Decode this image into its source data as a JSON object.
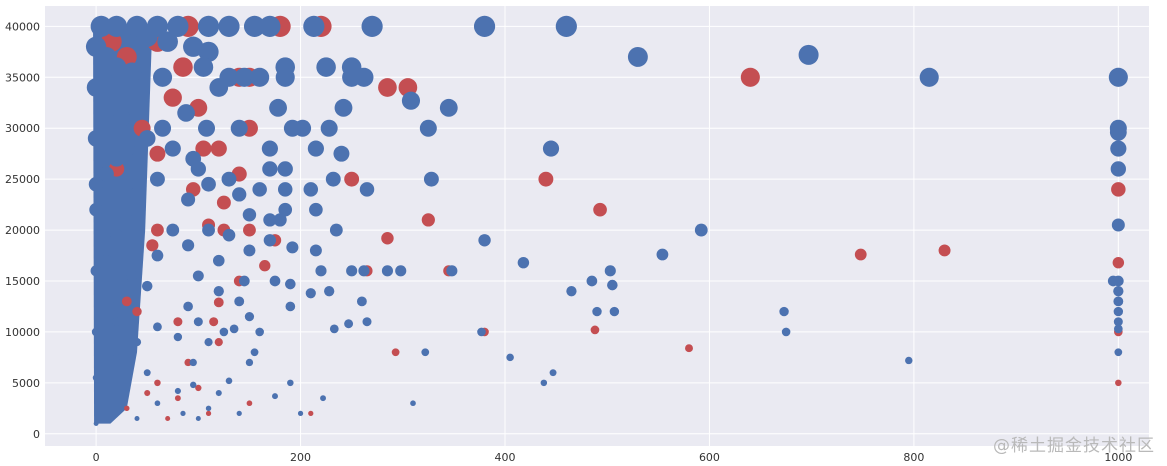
{
  "chart_data": {
    "type": "scatter",
    "title": "",
    "xlabel": "",
    "ylabel": "",
    "xlim": [
      -50,
      1030
    ],
    "ylim": [
      -1200,
      42000
    ],
    "xticks": [
      0,
      200,
      400,
      600,
      800,
      1000
    ],
    "yticks": [
      0,
      5000,
      10000,
      15000,
      20000,
      25000,
      30000,
      35000,
      40000
    ],
    "grid": true,
    "legend": "none",
    "colors": {
      "background": "#EAEAF2",
      "grid": "#FFFFFF",
      "blue": "#4C72B0",
      "red": "#C44E52"
    },
    "series": [
      {
        "color": "#C44E52",
        "points": [
          [
            180,
            40000
          ],
          [
            220,
            40000
          ],
          [
            90,
            40000
          ],
          [
            15,
            38500
          ],
          [
            60,
            38500
          ],
          [
            30,
            37000
          ],
          [
            85,
            36000
          ],
          [
            150,
            35000
          ],
          [
            140,
            35000
          ],
          [
            640,
            35000
          ],
          [
            285,
            34000
          ],
          [
            305,
            34000
          ],
          [
            75,
            33000
          ],
          [
            100,
            32000
          ],
          [
            150,
            30000
          ],
          [
            45,
            30000
          ],
          [
            105,
            28000
          ],
          [
            120,
            28000
          ],
          [
            60,
            27500
          ],
          [
            20,
            26000
          ],
          [
            140,
            25500
          ],
          [
            250,
            25000
          ],
          [
            440,
            25000
          ],
          [
            95,
            24000
          ],
          [
            125,
            22700
          ],
          [
            493,
            22000
          ],
          [
            325,
            21000
          ],
          [
            110,
            20500
          ],
          [
            150,
            20000
          ],
          [
            125,
            20000
          ],
          [
            60,
            20000
          ],
          [
            175,
            19000
          ],
          [
            285,
            19200
          ],
          [
            55,
            18500
          ],
          [
            830,
            18000
          ],
          [
            748,
            17600
          ],
          [
            1000,
            24000
          ],
          [
            1000,
            16800
          ],
          [
            165,
            16500
          ],
          [
            345,
            16000
          ],
          [
            265,
            16000
          ],
          [
            140,
            15000
          ],
          [
            120,
            12900
          ],
          [
            40,
            12000
          ],
          [
            30,
            13000
          ],
          [
            80,
            11000
          ],
          [
            115,
            11000
          ],
          [
            380,
            10000
          ],
          [
            488,
            10200
          ],
          [
            1000,
            10000
          ],
          [
            120,
            9000
          ],
          [
            580,
            8400
          ],
          [
            293,
            8000
          ],
          [
            90,
            7000
          ],
          [
            60,
            5000
          ],
          [
            1000,
            5000
          ],
          [
            100,
            4500
          ],
          [
            50,
            4000
          ],
          [
            150,
            3000
          ],
          [
            110,
            2000
          ],
          [
            210,
            2000
          ],
          [
            80,
            3500
          ],
          [
            30,
            2500
          ],
          [
            70,
            1500
          ]
        ]
      },
      {
        "color": "#4C72B0",
        "points": [
          [
            5,
            40000
          ],
          [
            20,
            40000
          ],
          [
            40,
            40000
          ],
          [
            60,
            40000
          ],
          [
            80,
            40000
          ],
          [
            110,
            40000
          ],
          [
            130,
            40000
          ],
          [
            155,
            40000
          ],
          [
            170,
            40000
          ],
          [
            213,
            40000
          ],
          [
            270,
            40000
          ],
          [
            380,
            40000
          ],
          [
            460,
            40000
          ],
          [
            0,
            38000
          ],
          [
            10,
            37000
          ],
          [
            50,
            39000
          ],
          [
            70,
            38500
          ],
          [
            95,
            38000
          ],
          [
            110,
            37500
          ],
          [
            530,
            37000
          ],
          [
            697,
            37200
          ],
          [
            20,
            36000
          ],
          [
            35,
            35500
          ],
          [
            105,
            36000
          ],
          [
            185,
            36000
          ],
          [
            225,
            36000
          ],
          [
            250,
            36000
          ],
          [
            815,
            35000
          ],
          [
            1000,
            35000
          ],
          [
            65,
            35000
          ],
          [
            130,
            35000
          ],
          [
            145,
            35000
          ],
          [
            160,
            35000
          ],
          [
            185,
            35000
          ],
          [
            250,
            35000
          ],
          [
            262,
            35000
          ],
          [
            120,
            34000
          ],
          [
            0,
            34000
          ],
          [
            40,
            33500
          ],
          [
            308,
            32700
          ],
          [
            178,
            32000
          ],
          [
            242,
            32000
          ],
          [
            345,
            32000
          ],
          [
            25,
            31000
          ],
          [
            88,
            31500
          ],
          [
            65,
            30000
          ],
          [
            108,
            30000
          ],
          [
            140,
            30000
          ],
          [
            192,
            30000
          ],
          [
            202,
            30000
          ],
          [
            228,
            30000
          ],
          [
            325,
            30000
          ],
          [
            1000,
            30000
          ],
          [
            1000,
            29600
          ],
          [
            0,
            29000
          ],
          [
            50,
            29000
          ],
          [
            30,
            28000
          ],
          [
            75,
            28000
          ],
          [
            170,
            28000
          ],
          [
            215,
            28000
          ],
          [
            445,
            28000
          ],
          [
            1000,
            28000
          ],
          [
            240,
            27500
          ],
          [
            20,
            27000
          ],
          [
            95,
            27000
          ],
          [
            100,
            26000
          ],
          [
            170,
            26000
          ],
          [
            185,
            26000
          ],
          [
            1000,
            26000
          ],
          [
            10,
            25500
          ],
          [
            130,
            25000
          ],
          [
            232,
            25000
          ],
          [
            328,
            25000
          ],
          [
            0,
            24500
          ],
          [
            60,
            25000
          ],
          [
            110,
            24500
          ],
          [
            160,
            24000
          ],
          [
            185,
            24000
          ],
          [
            210,
            24000
          ],
          [
            265,
            24000
          ],
          [
            40,
            23500
          ],
          [
            140,
            23500
          ],
          [
            90,
            23000
          ],
          [
            185,
            22000
          ],
          [
            215,
            22000
          ],
          [
            0,
            22000
          ],
          [
            30,
            21000
          ],
          [
            150,
            21500
          ],
          [
            170,
            21000
          ],
          [
            180,
            21000
          ],
          [
            1000,
            20500
          ],
          [
            235,
            20000
          ],
          [
            592,
            20000
          ],
          [
            75,
            20000
          ],
          [
            110,
            20000
          ],
          [
            20,
            19500
          ],
          [
            130,
            19500
          ],
          [
            170,
            19000
          ],
          [
            380,
            19000
          ],
          [
            90,
            18500
          ],
          [
            150,
            18000
          ],
          [
            192,
            18300
          ],
          [
            215,
            18000
          ],
          [
            554,
            17600
          ],
          [
            10,
            17000
          ],
          [
            60,
            17500
          ],
          [
            120,
            17000
          ],
          [
            418,
            16800
          ],
          [
            220,
            16000
          ],
          [
            250,
            16000
          ],
          [
            262,
            16000
          ],
          [
            285,
            16000
          ],
          [
            298,
            16000
          ],
          [
            348,
            16000
          ],
          [
            503,
            16000
          ],
          [
            0,
            16000
          ],
          [
            35,
            15500
          ],
          [
            100,
            15500
          ],
          [
            145,
            15000
          ],
          [
            175,
            15000
          ],
          [
            190,
            14700
          ],
          [
            485,
            15000
          ],
          [
            995,
            15000
          ],
          [
            1000,
            15000
          ],
          [
            505,
            14600
          ],
          [
            50,
            14500
          ],
          [
            120,
            14000
          ],
          [
            228,
            14000
          ],
          [
            465,
            14000
          ],
          [
            1000,
            14000
          ],
          [
            210,
            13800
          ],
          [
            140,
            13000
          ],
          [
            260,
            13000
          ],
          [
            1000,
            13000
          ],
          [
            20,
            12500
          ],
          [
            90,
            12500
          ],
          [
            190,
            12500
          ],
          [
            490,
            12000
          ],
          [
            507,
            12000
          ],
          [
            673,
            12000
          ],
          [
            1000,
            12000
          ],
          [
            150,
            11500
          ],
          [
            265,
            11000
          ],
          [
            20,
            11000
          ],
          [
            100,
            11000
          ],
          [
            247,
            10800
          ],
          [
            1000,
            11000
          ],
          [
            60,
            10500
          ],
          [
            135,
            10300
          ],
          [
            233,
            10300
          ],
          [
            0,
            10000
          ],
          [
            125,
            10000
          ],
          [
            160,
            10000
          ],
          [
            377,
            10000
          ],
          [
            675,
            10000
          ],
          [
            1000,
            10300
          ],
          [
            80,
            9500
          ],
          [
            40,
            9000
          ],
          [
            110,
            9000
          ],
          [
            155,
            8000
          ],
          [
            322,
            8000
          ],
          [
            405,
            7500
          ],
          [
            1000,
            8000
          ],
          [
            795,
            7200
          ],
          [
            20,
            7500
          ],
          [
            95,
            7000
          ],
          [
            150,
            7000
          ],
          [
            50,
            6000
          ],
          [
            447,
            6000
          ],
          [
            0,
            5500
          ],
          [
            130,
            5200
          ],
          [
            95,
            4800
          ],
          [
            190,
            5000
          ],
          [
            438,
            5000
          ],
          [
            80,
            4200
          ],
          [
            120,
            4000
          ],
          [
            20,
            3500
          ],
          [
            175,
            3700
          ],
          [
            222,
            3500
          ],
          [
            310,
            3000
          ],
          [
            60,
            3000
          ],
          [
            110,
            2500
          ],
          [
            85,
            2000
          ],
          [
            140,
            2000
          ],
          [
            40,
            1500
          ],
          [
            200,
            2000
          ],
          [
            0,
            1000
          ],
          [
            100,
            1500
          ]
        ]
      }
    ]
  },
  "watermark": "@稀土掘金技术社区"
}
